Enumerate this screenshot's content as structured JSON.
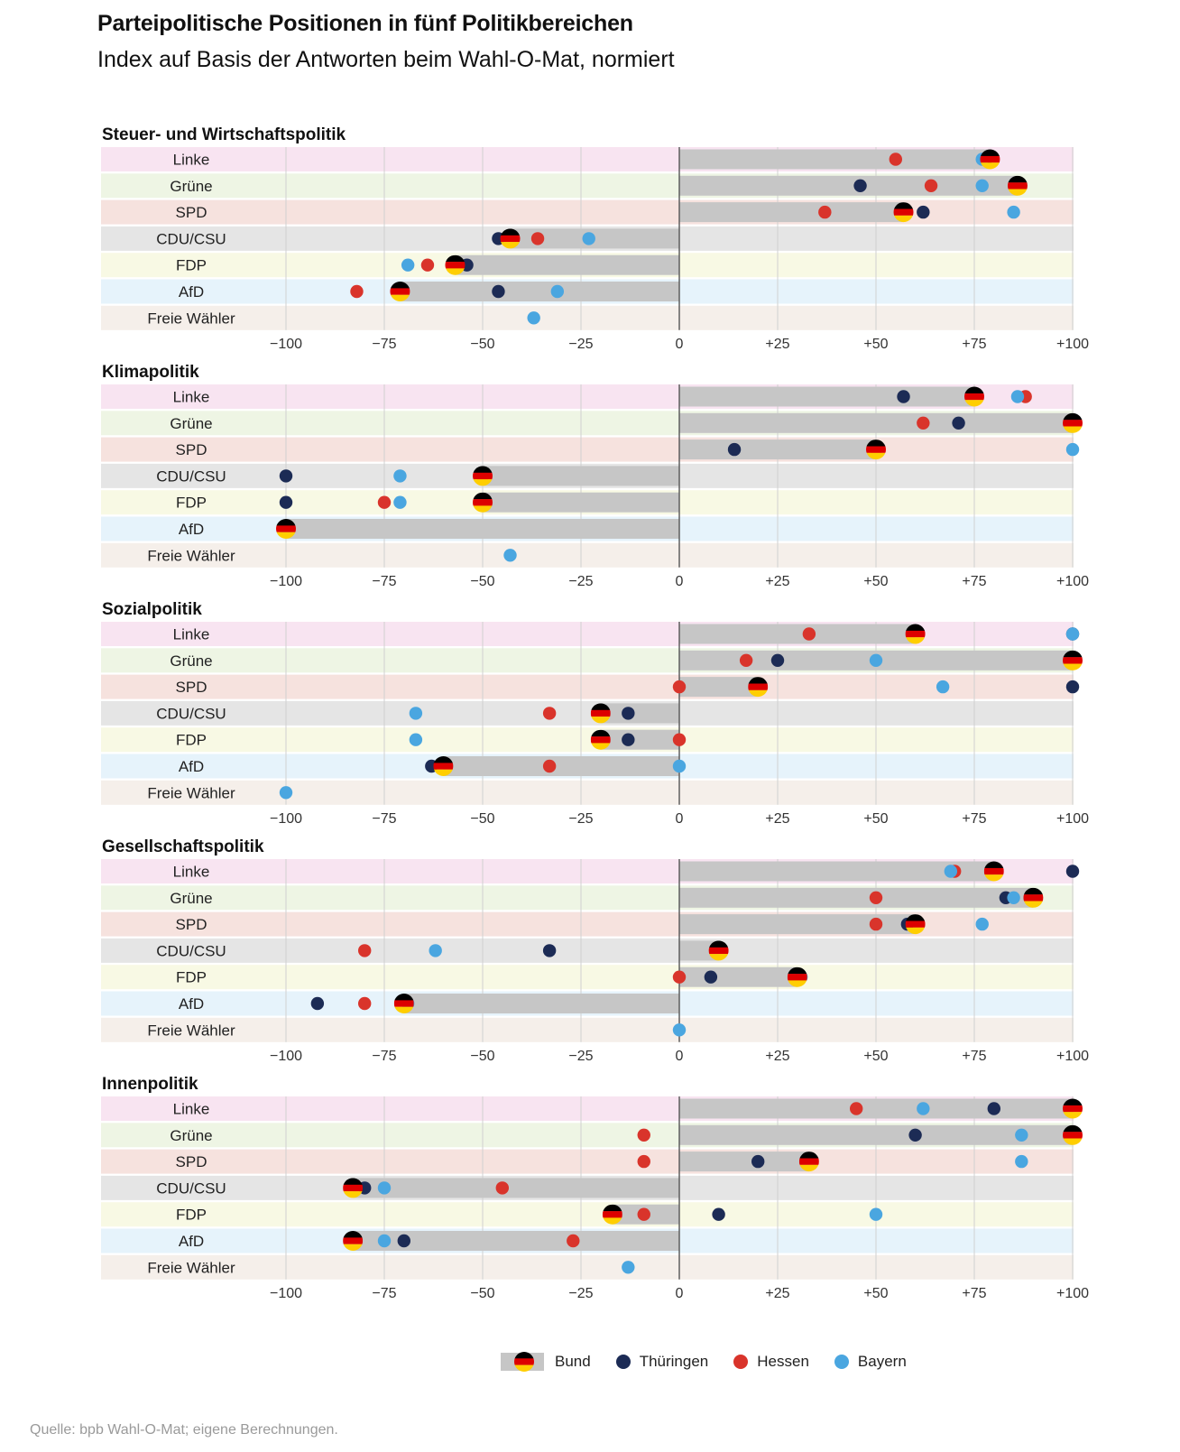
{
  "title": "Parteipolitische Positionen in fünf Politikbereichen",
  "subtitle": "Index auf Basis der Antworten beim Wahl-O-Mat, normiert",
  "source": "Quelle: bpb Wahl-O-Mat; eigene Berechnungen.",
  "legend": {
    "bund": "Bund",
    "thueringen": "Thüringen",
    "hessen": "Hessen",
    "bayern": "Bayern"
  },
  "colors": {
    "thueringen": "#1c2b55",
    "hessen": "#d9342b",
    "bayern": "#4aa6e0",
    "bar": "#c6c6c6",
    "axis": "#555555",
    "grid": "#d0d0d0",
    "row_bg": {
      "Linke": "#f8e4f1",
      "Grüne": "#eef5e4",
      "SPD": "#f6e2de",
      "CDU/CSU": "#e5e5e5",
      "FDP": "#f8f9e4",
      "AfD": "#e6f3fb",
      "Freie Wähler": "#f5efea"
    }
  },
  "chart_data": {
    "type": "dot-range",
    "xlim": [
      -100,
      100
    ],
    "ticks": [
      "−100",
      "−75",
      "−50",
      "−25",
      "0",
      "+25",
      "+50",
      "+75",
      "+100"
    ],
    "tick_values": [
      -100,
      -75,
      -50,
      -25,
      0,
      25,
      50,
      75,
      100
    ],
    "parties": [
      "Linke",
      "Grüne",
      "SPD",
      "CDU/CSU",
      "FDP",
      "AfD",
      "Freie Wähler"
    ],
    "series_names": [
      "Bund",
      "Thüringen",
      "Hessen",
      "Bayern"
    ],
    "panels": [
      {
        "title": "Steuer- und Wirtschaftspolitik",
        "rows": [
          {
            "party": "Linke",
            "bund": 79,
            "thueringen": 78,
            "hessen": 55,
            "bayern": 77
          },
          {
            "party": "Grüne",
            "bund": 86,
            "thueringen": 46,
            "hessen": 64,
            "bayern": 77
          },
          {
            "party": "SPD",
            "bund": 57,
            "thueringen": 62,
            "hessen": 37,
            "bayern": 85
          },
          {
            "party": "CDU/CSU",
            "bund": -43,
            "thueringen": -46,
            "hessen": -36,
            "bayern": -23
          },
          {
            "party": "FDP",
            "bund": -57,
            "thueringen": -54,
            "hessen": -64,
            "bayern": -69
          },
          {
            "party": "AfD",
            "bund": -71,
            "thueringen": -46,
            "hessen": -82,
            "bayern": -31
          },
          {
            "party": "Freie Wähler",
            "bund": null,
            "thueringen": null,
            "hessen": null,
            "bayern": -37
          }
        ]
      },
      {
        "title": "Klimapolitik",
        "rows": [
          {
            "party": "Linke",
            "bund": 75,
            "thueringen": 57,
            "hessen": 88,
            "bayern": 86
          },
          {
            "party": "Grüne",
            "bund": 100,
            "thueringen": 71,
            "hessen": 62,
            "bayern": 100
          },
          {
            "party": "SPD",
            "bund": 50,
            "thueringen": 14,
            "hessen": 50,
            "bayern": 100
          },
          {
            "party": "CDU/CSU",
            "bund": -50,
            "thueringen": -100,
            "hessen": -50,
            "bayern": -71
          },
          {
            "party": "FDP",
            "bund": -50,
            "thueringen": -100,
            "hessen": -75,
            "bayern": -71
          },
          {
            "party": "AfD",
            "bund": -100,
            "thueringen": -100,
            "hessen": -100,
            "bayern": -100
          },
          {
            "party": "Freie Wähler",
            "bund": null,
            "thueringen": null,
            "hessen": null,
            "bayern": -43
          }
        ]
      },
      {
        "title": "Sozialpolitik",
        "rows": [
          {
            "party": "Linke",
            "bund": 60,
            "thueringen": 100,
            "hessen": 33,
            "bayern": 100
          },
          {
            "party": "Grüne",
            "bund": 100,
            "thueringen": 25,
            "hessen": 17,
            "bayern": 50
          },
          {
            "party": "SPD",
            "bund": 20,
            "thueringen": 100,
            "hessen": 0,
            "bayern": 67
          },
          {
            "party": "CDU/CSU",
            "bund": -20,
            "thueringen": -13,
            "hessen": -33,
            "bayern": -67
          },
          {
            "party": "FDP",
            "bund": -20,
            "thueringen": -13,
            "hessen": 0,
            "bayern": -67
          },
          {
            "party": "AfD",
            "bund": -60,
            "thueringen": -63,
            "hessen": -33,
            "bayern": 0
          },
          {
            "party": "Freie Wähler",
            "bund": null,
            "thueringen": null,
            "hessen": null,
            "bayern": -100
          }
        ]
      },
      {
        "title": "Gesellschaftspolitik",
        "rows": [
          {
            "party": "Linke",
            "bund": 80,
            "thueringen": 100,
            "hessen": 70,
            "bayern": 69
          },
          {
            "party": "Grüne",
            "bund": 90,
            "thueringen": 83,
            "hessen": 50,
            "bayern": 85
          },
          {
            "party": "SPD",
            "bund": 60,
            "thueringen": 58,
            "hessen": 50,
            "bayern": 77
          },
          {
            "party": "CDU/CSU",
            "bund": 10,
            "thueringen": -33,
            "hessen": -80,
            "bayern": -62
          },
          {
            "party": "FDP",
            "bund": 30,
            "thueringen": 8,
            "hessen": 0,
            "bayern": 31
          },
          {
            "party": "AfD",
            "bund": -70,
            "thueringen": -92,
            "hessen": -80,
            "bayern": -69
          },
          {
            "party": "Freie Wähler",
            "bund": null,
            "thueringen": null,
            "hessen": null,
            "bayern": 0
          }
        ]
      },
      {
        "title": "Innenpolitik",
        "rows": [
          {
            "party": "Linke",
            "bund": 100,
            "thueringen": 80,
            "hessen": 45,
            "bayern": 62
          },
          {
            "party": "Grüne",
            "bund": 100,
            "thueringen": 60,
            "hessen": -9,
            "bayern": 87
          },
          {
            "party": "SPD",
            "bund": 33,
            "thueringen": 20,
            "hessen": -9,
            "bayern": 87
          },
          {
            "party": "CDU/CSU",
            "bund": -83,
            "thueringen": -80,
            "hessen": -45,
            "bayern": -75
          },
          {
            "party": "FDP",
            "bund": -17,
            "thueringen": 10,
            "hessen": -9,
            "bayern": 50
          },
          {
            "party": "AfD",
            "bund": -83,
            "thueringen": -70,
            "hessen": -27,
            "bayern": -75
          },
          {
            "party": "Freie Wähler",
            "bund": null,
            "thueringen": null,
            "hessen": null,
            "bayern": -13
          }
        ]
      }
    ]
  }
}
